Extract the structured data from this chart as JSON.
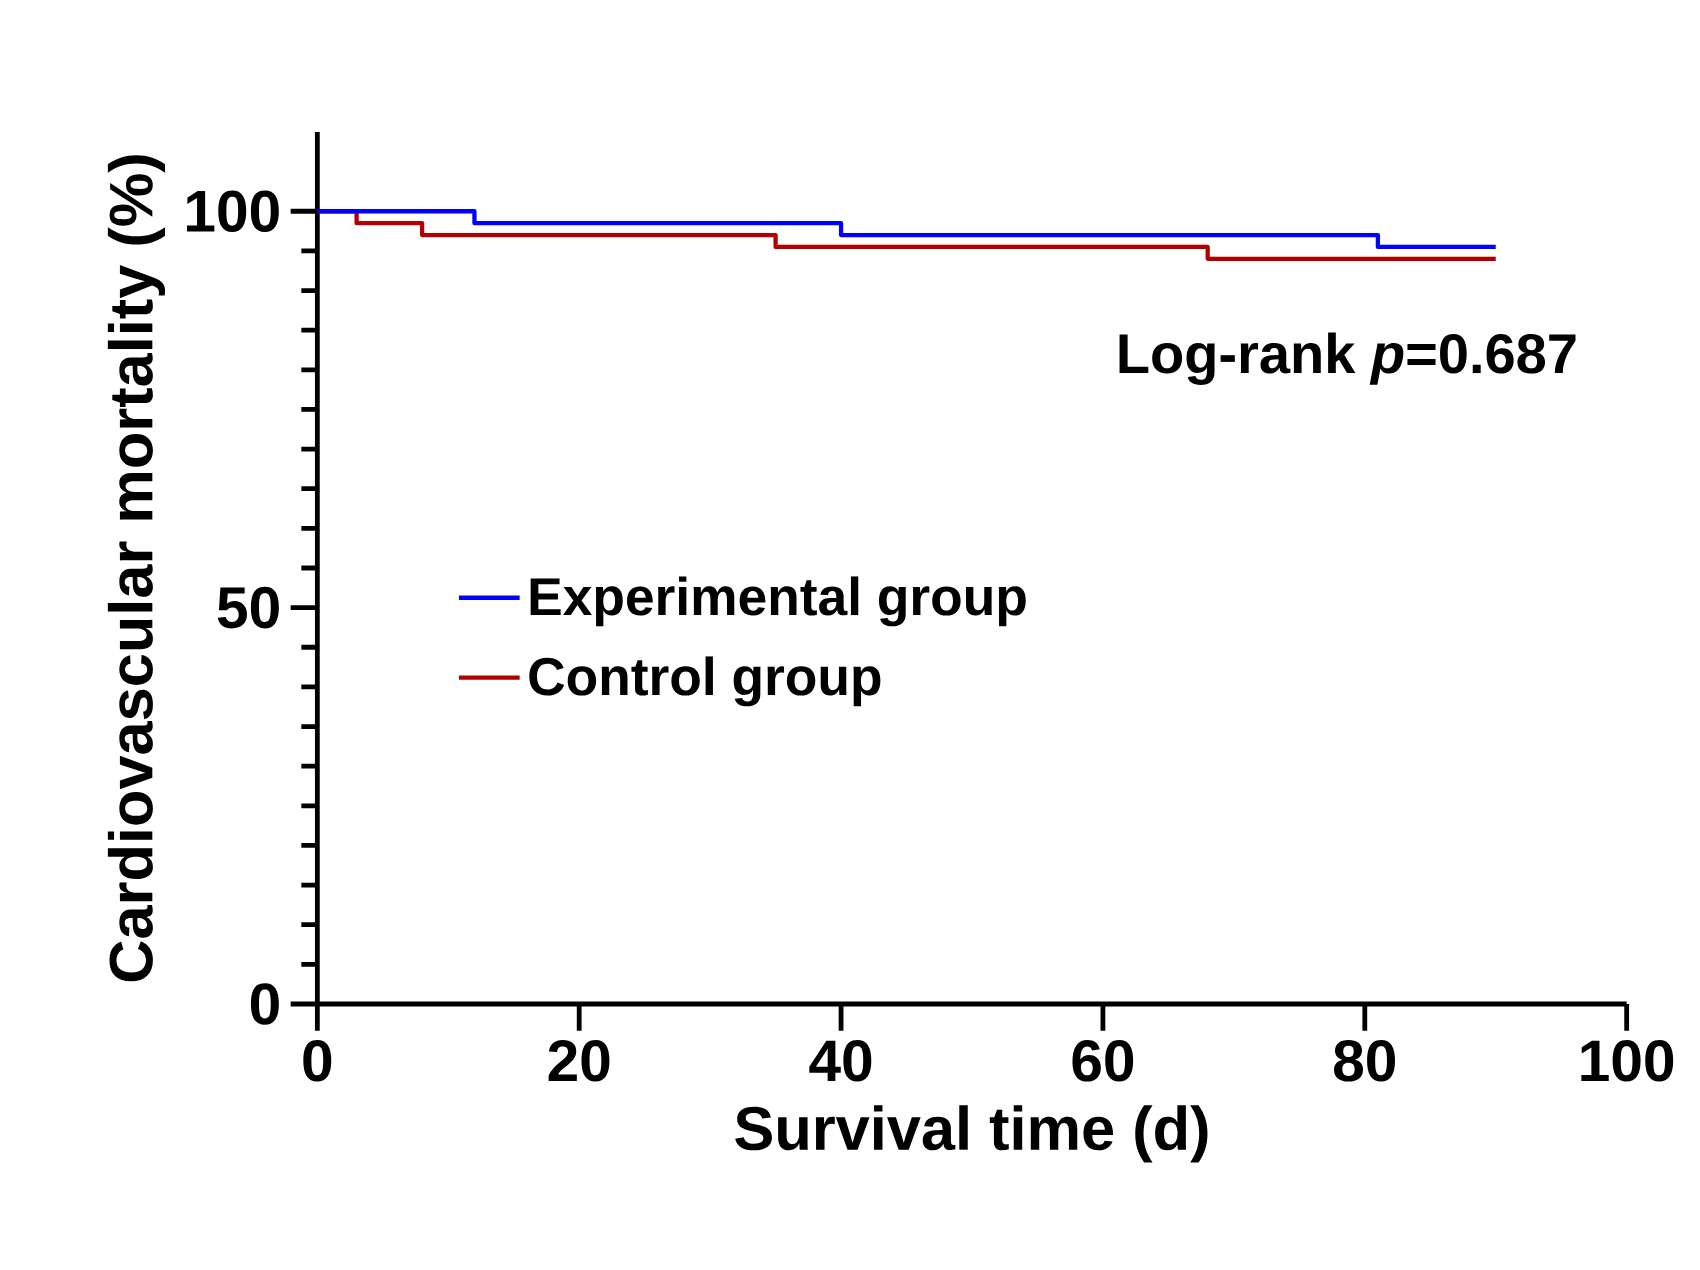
{
  "chart_data": {
    "type": "step",
    "xlabel": "Survival time  (d)",
    "ylabel": "Cardiovascular mortality (%)",
    "annotations": [
      "Log-rank *p*=0.687"
    ],
    "series": [
      {
        "name": "Experimental group",
        "color": "#0000ff",
        "x": [
          0,
          12,
          40,
          81,
          90
        ],
        "values": [
          100,
          98.5,
          97,
          95.5,
          95.5
        ]
      },
      {
        "name": "Control group",
        "color": "#b20000",
        "x": [
          0,
          3,
          8,
          35,
          68,
          90
        ],
        "values": [
          100,
          98.5,
          97,
          95.5,
          94,
          94
        ]
      }
    ],
    "xlim": [
      0,
      100
    ],
    "ylim": [
      0,
      110
    ],
    "xticks": [
      0,
      20,
      40,
      60,
      80,
      100
    ],
    "yticks": [
      0,
      50,
      100
    ],
    "legend": "left",
    "grid": false
  }
}
